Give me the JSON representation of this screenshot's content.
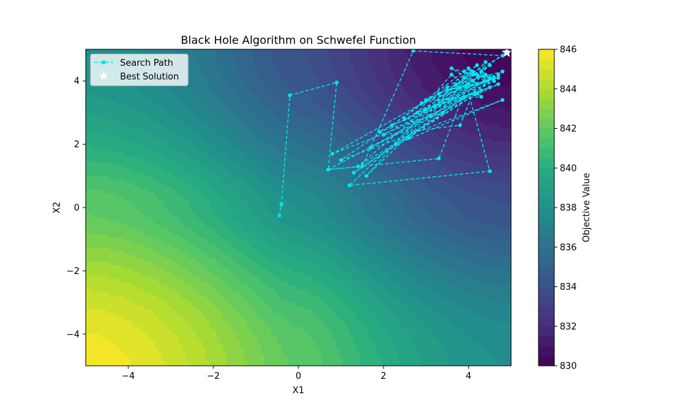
{
  "chart_data": {
    "type": "contour",
    "title": "Black Hole Algorithm on Schwefel Function",
    "xlabel": "X1",
    "ylabel": "X2",
    "xlim": [
      -5,
      5
    ],
    "ylim": [
      -5,
      5
    ],
    "xticks": [
      -4,
      -2,
      0,
      2,
      4
    ],
    "yticks": [
      -4,
      -2,
      0,
      2,
      4
    ],
    "xtick_labels": [
      "−4",
      "−2",
      "0",
      "2",
      "4"
    ],
    "ytick_labels": [
      "−4",
      "−2",
      "0",
      "2",
      "4"
    ],
    "grid": false,
    "legend_placement": "upper-left",
    "colormap": "viridis",
    "colorbar": {
      "label": "Objective Value",
      "range": [
        830,
        846
      ],
      "ticks": [
        830,
        832,
        834,
        836,
        838,
        840,
        842,
        844,
        846
      ],
      "tick_labels": [
        "830",
        "832",
        "834",
        "836",
        "838",
        "840",
        "842",
        "844",
        "846"
      ]
    },
    "surface": {
      "function": "schwefel",
      "max_point": [
        -5,
        -5
      ],
      "max_value": 846,
      "min_point": [
        5,
        5
      ],
      "min_value": 830
    },
    "series": [
      {
        "name": "Search Path",
        "style": "dashed-line-with-dots",
        "color": "#00e5ee",
        "x": [
          -0.45,
          -0.4,
          -0.2,
          0.9,
          0.7,
          1.5,
          2.7,
          4.8,
          3.9,
          4.5,
          1.2,
          4.2,
          3.5,
          1.0,
          4.8,
          2.3,
          4.1,
          3.3,
          0.7,
          4.6,
          3.0,
          1.6,
          4.4,
          3.8,
          2.0,
          4.7,
          1.3,
          4.3,
          3.1,
          0.8,
          4.5,
          2.6,
          3.9,
          1.7,
          4.7,
          2.2,
          4.0,
          3.4,
          1.9,
          4.6,
          2.9,
          4.2,
          1.4,
          3.7,
          4.8,
          2.5,
          4.1,
          3.2,
          4.5,
          2.8,
          3.6,
          4.3,
          3.0,
          4.7,
          3.5,
          4.0,
          3.3,
          4.4,
          3.8,
          4.6,
          3.6,
          4.2,
          3.9,
          4.5,
          4.1,
          4.4,
          4.3,
          4.6,
          4.2,
          4.9
        ],
        "y": [
          -0.25,
          0.1,
          3.55,
          3.95,
          1.2,
          1.3,
          4.95,
          4.8,
          4.1,
          1.15,
          0.7,
          4.5,
          3.8,
          1.5,
          3.4,
          2.0,
          4.3,
          1.55,
          1.2,
          4.0,
          3.1,
          1.0,
          4.6,
          2.6,
          2.3,
          4.2,
          1.1,
          3.7,
          2.9,
          1.7,
          4.5,
          2.2,
          3.5,
          1.9,
          3.9,
          2.6,
          4.4,
          3.0,
          2.4,
          4.1,
          3.3,
          3.6,
          1.3,
          3.9,
          4.3,
          2.8,
          4.0,
          3.2,
          3.8,
          3.0,
          4.2,
          3.5,
          3.4,
          4.1,
          3.7,
          3.9,
          3.6,
          4.2,
          3.8,
          4.0,
          4.4,
          3.9,
          4.3,
          4.1,
          4.2,
          4.0,
          4.3,
          4.1,
          4.2,
          4.95
        ]
      },
      {
        "name": "Best Solution",
        "style": "star-marker",
        "color": "#ffffff",
        "x": [
          4.9
        ],
        "y": [
          4.9
        ]
      }
    ]
  }
}
